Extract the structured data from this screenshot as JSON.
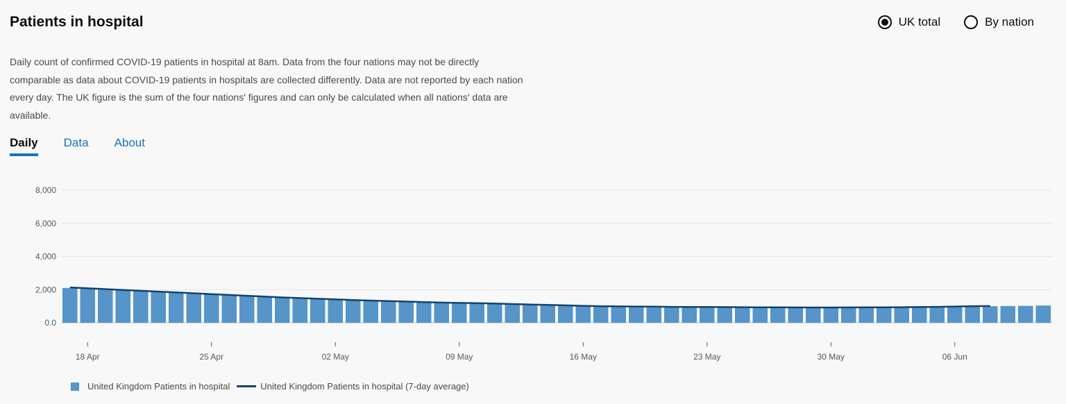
{
  "header": {
    "title": "Patients in hospital",
    "description": "Daily count of confirmed COVID-19 patients in hospital at 8am. Data from the four nations may not be directly comparable as data about COVID-19 patients in hospitals are collected differently. Data are not reported by each nation every day. The UK figure is the sum of the four nations' figures and can only be calculated when all nations' data are available."
  },
  "radio": {
    "options": [
      {
        "label": "UK total",
        "selected": true
      },
      {
        "label": "By nation",
        "selected": false
      }
    ]
  },
  "tabs": [
    {
      "label": "Daily",
      "active": true
    },
    {
      "label": "Data",
      "active": false
    },
    {
      "label": "About",
      "active": false
    }
  ],
  "colors": {
    "bar": "#5694ca",
    "average_line": "#12436d",
    "active_tab_underline": "#1d70b8"
  },
  "chart_data": {
    "type": "bar",
    "x": [
      "2020-04-17",
      "2020-04-18",
      "2020-04-19",
      "2020-04-20",
      "2020-04-21",
      "2020-04-22",
      "2020-04-23",
      "2020-04-24",
      "2020-04-25",
      "2020-04-26",
      "2020-04-27",
      "2020-04-28",
      "2020-04-29",
      "2020-04-30",
      "2020-05-01",
      "2020-05-02",
      "2020-05-03",
      "2020-05-04",
      "2020-05-05",
      "2020-05-06",
      "2020-05-07",
      "2020-05-08",
      "2020-05-09",
      "2020-05-10",
      "2020-05-11",
      "2020-05-12",
      "2020-05-13",
      "2020-05-14",
      "2020-05-15",
      "2020-05-16",
      "2020-05-17",
      "2020-05-18",
      "2020-05-19",
      "2020-05-20",
      "2020-05-21",
      "2020-05-22",
      "2020-05-23",
      "2020-05-24",
      "2020-05-25",
      "2020-05-26",
      "2020-05-27",
      "2020-05-28",
      "2020-05-29",
      "2020-05-30",
      "2020-05-31",
      "2020-06-01",
      "2020-06-02",
      "2020-06-03",
      "2020-06-04",
      "2020-06-05",
      "2020-06-06",
      "2020-06-07",
      "2020-06-08",
      "2020-06-09",
      "2020-06-10",
      "2020-06-11"
    ],
    "series": [
      {
        "name": "United Kingdom Patients in hospital",
        "type": "bar",
        "values": [
          2100,
          2050,
          2000,
          1950,
          1920,
          1880,
          1820,
          1780,
          1720,
          1680,
          1640,
          1580,
          1540,
          1480,
          1440,
          1400,
          1360,
          1330,
          1300,
          1270,
          1240,
          1210,
          1190,
          1170,
          1150,
          1120,
          1090,
          1070,
          1040,
          1010,
          990,
          980,
          970,
          960,
          950,
          945,
          940,
          935,
          930,
          925,
          920,
          915,
          910,
          910,
          915,
          920,
          925,
          930,
          940,
          950,
          960,
          980,
          1000,
          1010,
          1020,
          1040
        ]
      },
      {
        "name": "United Kingdom Patients in hospital (7-day average)",
        "type": "line",
        "values": [
          2130,
          2080,
          2030,
          1980,
          1930,
          1880,
          1830,
          1780,
          1730,
          1680,
          1630,
          1580,
          1530,
          1490,
          1450,
          1410,
          1370,
          1340,
          1310,
          1280,
          1250,
          1220,
          1200,
          1180,
          1160,
          1130,
          1100,
          1080,
          1050,
          1020,
          1000,
          990,
          980,
          970,
          960,
          955,
          950,
          945,
          940,
          935,
          930,
          925,
          920,
          920,
          925,
          930,
          935,
          940,
          950,
          960,
          980,
          1000,
          1010,
          null,
          null,
          null
        ]
      }
    ],
    "xticks": [
      {
        "date": "2020-04-18",
        "label": "18 Apr"
      },
      {
        "date": "2020-04-25",
        "label": "25 Apr"
      },
      {
        "date": "2020-05-02",
        "label": "02 May"
      },
      {
        "date": "2020-05-09",
        "label": "09 May"
      },
      {
        "date": "2020-05-16",
        "label": "16 May"
      },
      {
        "date": "2020-05-23",
        "label": "23 May"
      },
      {
        "date": "2020-05-30",
        "label": "30 May"
      },
      {
        "date": "2020-06-06",
        "label": "06 Jun"
      }
    ],
    "yticks": [
      {
        "value": 0,
        "label": "0.0"
      },
      {
        "value": 2000,
        "label": "2,000"
      },
      {
        "value": 4000,
        "label": "4,000"
      },
      {
        "value": 6000,
        "label": "6,000"
      },
      {
        "value": 8000,
        "label": "8,000"
      }
    ],
    "ylim": [
      0,
      8000
    ],
    "grid": true,
    "legend_position": "bottom-left"
  }
}
